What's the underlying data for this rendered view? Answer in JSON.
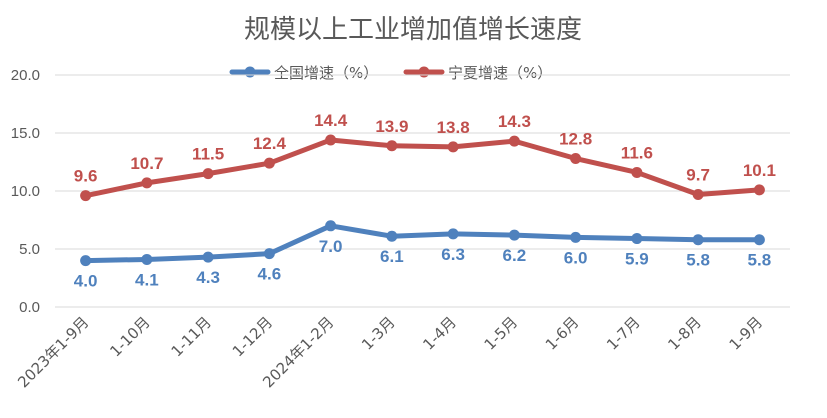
{
  "chart_data": {
    "type": "line",
    "title": "规模以上工业增加值增长速度",
    "xlabel": "",
    "ylabel": "",
    "categories": [
      "2023年1-9月",
      "1-10月",
      "1-11月",
      "1-12月",
      "2024年1-2月",
      "1-3月",
      "1-4月",
      "1-5月",
      "1-6月",
      "1-7月",
      "1-8月",
      "1-9月"
    ],
    "ylim": [
      0,
      20
    ],
    "yticks": [
      "0.0",
      "5.0",
      "10.0",
      "15.0",
      "20.0"
    ],
    "grid": true,
    "legend_position": "top",
    "series": [
      {
        "name": "全国增速（%）",
        "color": "#4f81bd",
        "values": [
          4.0,
          4.1,
          4.3,
          4.6,
          7.0,
          6.1,
          6.3,
          6.2,
          6.0,
          5.9,
          5.8,
          5.8
        ],
        "labels": [
          "4.0",
          "4.1",
          "4.3",
          "4.6",
          "7.0",
          "6.1",
          "6.3",
          "6.2",
          "6.0",
          "5.9",
          "5.8",
          "5.8"
        ],
        "label_position": "below"
      },
      {
        "name": "宁夏增速（%）",
        "color": "#c0504d",
        "values": [
          9.6,
          10.7,
          11.5,
          12.4,
          14.4,
          13.9,
          13.8,
          14.3,
          12.8,
          11.6,
          9.7,
          10.1
        ],
        "labels": [
          "9.6",
          "10.7",
          "11.5",
          "12.4",
          "14.4",
          "13.9",
          "13.8",
          "14.3",
          "12.8",
          "11.6",
          "9.7",
          "10.1"
        ],
        "label_position": "above"
      }
    ]
  }
}
